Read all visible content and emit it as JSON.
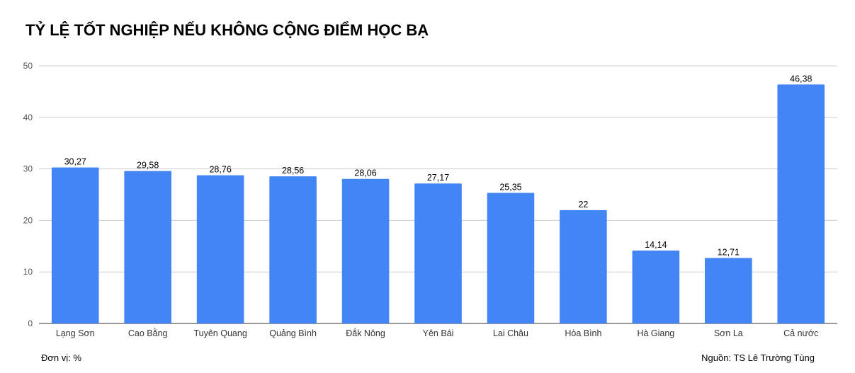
{
  "chart_data": {
    "type": "bar",
    "title": "TỶ LỆ TỐT NGHIỆP NẾU KHÔNG CỘNG ĐIỂM HỌC BẠ",
    "categories": [
      "Lạng Sơn",
      "Cao Bằng",
      "Tuyên Quang",
      "Quảng Bình",
      "Đắk Nông",
      "Yên Bái",
      "Lai Châu",
      "Hòa Bình",
      "Hà Giang",
      "Sơn La",
      "Cả nước"
    ],
    "values": [
      30.27,
      29.58,
      28.76,
      28.56,
      28.06,
      27.17,
      25.35,
      22,
      14.14,
      12.71,
      46.38
    ],
    "value_labels": [
      "30,27",
      "29,58",
      "28,76",
      "28,56",
      "28,06",
      "27,17",
      "25,35",
      "22",
      "14,14",
      "12,71",
      "46,38"
    ],
    "ylim": [
      0,
      50
    ],
    "yticks": [
      0,
      10,
      20,
      30,
      40,
      50
    ],
    "grid": true,
    "bar_color": "#4285f4",
    "grid_color": "#cccccc"
  },
  "footer": {
    "unit": "Đơn vị: %",
    "source": "Nguồn: TS Lê Trường Tùng"
  }
}
